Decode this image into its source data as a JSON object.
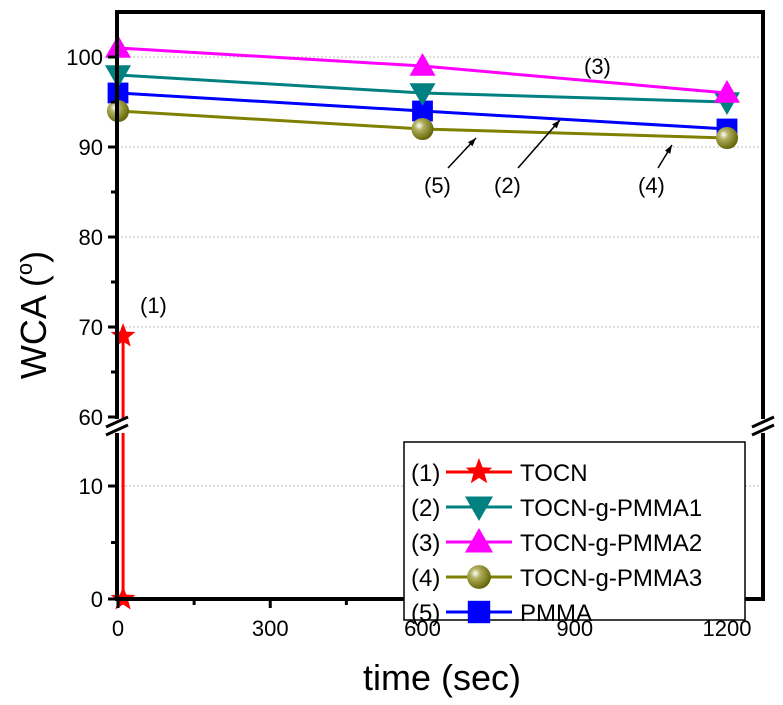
{
  "chart_data": {
    "type": "line",
    "xlabel": "time (sec)",
    "ylabel": "WCA (",
    "ylabel_sup": "o",
    "ylabel_close": ")",
    "xlim": [
      0,
      1260
    ],
    "ylim_upper": [
      60,
      105
    ],
    "ylim_lower": [
      0,
      15
    ],
    "axis_break": "between 15 and 60",
    "xticks": [
      0,
      300,
      600,
      900,
      1200
    ],
    "yticks_upper": [
      60,
      70,
      80,
      90,
      100
    ],
    "yticks_lower": [
      0,
      10
    ],
    "grid": "dotted horizontal",
    "legend_placement": "bottom-right",
    "series": [
      {
        "id": "(1)",
        "name": "TOCN",
        "color": "#ff0000",
        "marker": "star",
        "x": [
          10,
          10
        ],
        "y": [
          69,
          0
        ]
      },
      {
        "id": "(2)",
        "name": "TOCN-g-PMMA1",
        "color": "#008080",
        "marker": "triangle-down",
        "x": [
          0,
          600,
          1200
        ],
        "y": [
          98,
          96,
          95
        ]
      },
      {
        "id": "(3)",
        "name": "TOCN-g-PMMA2",
        "color": "#ff00ff",
        "marker": "triangle-up",
        "x": [
          0,
          600,
          1200
        ],
        "y": [
          101,
          99,
          96
        ]
      },
      {
        "id": "(4)",
        "name": "TOCN-g-PMMA3",
        "color": "#808000",
        "marker": "sphere",
        "x": [
          0,
          600,
          1200
        ],
        "y": [
          94,
          92,
          91
        ]
      },
      {
        "id": "(5)",
        "name": "PMMA",
        "color": "#0000ff",
        "marker": "square",
        "x": [
          0,
          600,
          1200
        ],
        "y": [
          96,
          94,
          92
        ]
      }
    ],
    "annotations": [
      {
        "text": "(1)",
        "series": "TOCN"
      },
      {
        "text": "(3)",
        "series": "TOCN-g-PMMA2"
      },
      {
        "text": "(5)",
        "series": "PMMA"
      },
      {
        "text": "(2)",
        "series": "TOCN-g-PMMA1"
      },
      {
        "text": "(4)",
        "series": "TOCN-g-PMMA3"
      }
    ]
  }
}
